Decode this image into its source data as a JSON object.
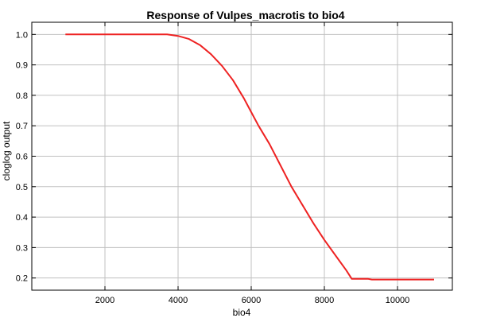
{
  "chart_data": {
    "type": "line",
    "title": "Response of Vulpes_macrotis to bio4",
    "xlabel": "bio4",
    "ylabel": "cloglog output",
    "xlim": [
      0,
      11500
    ],
    "ylim": [
      0.16,
      1.04
    ],
    "xticks": [
      2000,
      4000,
      6000,
      8000,
      10000
    ],
    "yticks": [
      0.2,
      0.3,
      0.4,
      0.5,
      0.6,
      0.7,
      0.8,
      0.9,
      1.0
    ],
    "xtick_labels": [
      "2000",
      "4000",
      "6000",
      "8000",
      "10000"
    ],
    "ytick_labels": [
      "0.2",
      "0.3",
      "0.4",
      "0.5",
      "0.6",
      "0.7",
      "0.8",
      "0.9",
      "1.0"
    ],
    "grid": true,
    "series": [
      {
        "color": "#ee2222",
        "x": [
          920,
          2000,
          3000,
          3700,
          4000,
          4300,
          4600,
          4900,
          5200,
          5500,
          5800,
          6000,
          6200,
          6500,
          6800,
          7100,
          7400,
          7700,
          8000,
          8300,
          8600,
          8750,
          9000,
          9200,
          9300,
          10000,
          11000
        ],
        "y": [
          1.0,
          1.0,
          1.0,
          1.0,
          0.995,
          0.985,
          0.965,
          0.935,
          0.897,
          0.85,
          0.79,
          0.745,
          0.7,
          0.64,
          0.57,
          0.5,
          0.44,
          0.38,
          0.325,
          0.275,
          0.225,
          0.197,
          0.197,
          0.197,
          0.195,
          0.195,
          0.195
        ]
      }
    ]
  }
}
